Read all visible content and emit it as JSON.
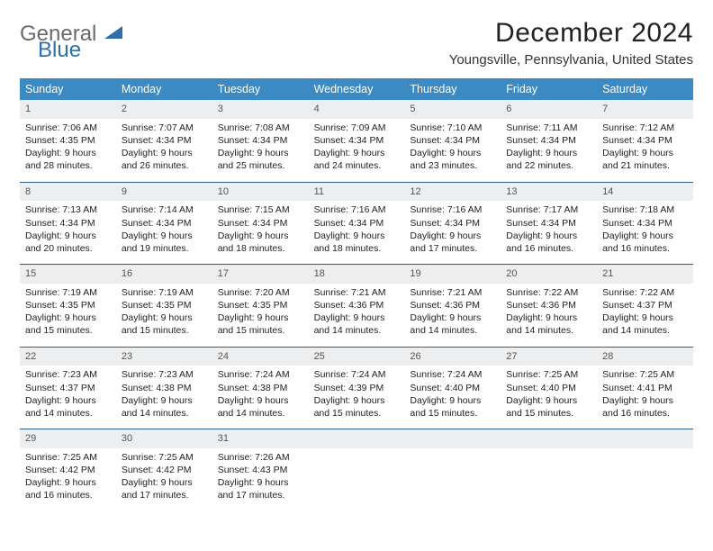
{
  "brand": {
    "line1": "General",
    "line2": "Blue",
    "line1_color": "#6a6a6a",
    "line2_color": "#2f6fa8",
    "icon_fill": "#2f6fa8"
  },
  "header": {
    "month_title": "December 2024",
    "location": "Youngsville, Pennsylvania, United States"
  },
  "colors": {
    "header_bar": "#3b8ac4",
    "week_divider": "#2c5f8a",
    "daynum_bg": "#eceeef"
  },
  "day_names": [
    "Sunday",
    "Monday",
    "Tuesday",
    "Wednesday",
    "Thursday",
    "Friday",
    "Saturday"
  ],
  "weeks": [
    [
      {
        "n": "1",
        "sr": "Sunrise: 7:06 AM",
        "ss": "Sunset: 4:35 PM",
        "d1": "Daylight: 9 hours",
        "d2": "and 28 minutes."
      },
      {
        "n": "2",
        "sr": "Sunrise: 7:07 AM",
        "ss": "Sunset: 4:34 PM",
        "d1": "Daylight: 9 hours",
        "d2": "and 26 minutes."
      },
      {
        "n": "3",
        "sr": "Sunrise: 7:08 AM",
        "ss": "Sunset: 4:34 PM",
        "d1": "Daylight: 9 hours",
        "d2": "and 25 minutes."
      },
      {
        "n": "4",
        "sr": "Sunrise: 7:09 AM",
        "ss": "Sunset: 4:34 PM",
        "d1": "Daylight: 9 hours",
        "d2": "and 24 minutes."
      },
      {
        "n": "5",
        "sr": "Sunrise: 7:10 AM",
        "ss": "Sunset: 4:34 PM",
        "d1": "Daylight: 9 hours",
        "d2": "and 23 minutes."
      },
      {
        "n": "6",
        "sr": "Sunrise: 7:11 AM",
        "ss": "Sunset: 4:34 PM",
        "d1": "Daylight: 9 hours",
        "d2": "and 22 minutes."
      },
      {
        "n": "7",
        "sr": "Sunrise: 7:12 AM",
        "ss": "Sunset: 4:34 PM",
        "d1": "Daylight: 9 hours",
        "d2": "and 21 minutes."
      }
    ],
    [
      {
        "n": "8",
        "sr": "Sunrise: 7:13 AM",
        "ss": "Sunset: 4:34 PM",
        "d1": "Daylight: 9 hours",
        "d2": "and 20 minutes."
      },
      {
        "n": "9",
        "sr": "Sunrise: 7:14 AM",
        "ss": "Sunset: 4:34 PM",
        "d1": "Daylight: 9 hours",
        "d2": "and 19 minutes."
      },
      {
        "n": "10",
        "sr": "Sunrise: 7:15 AM",
        "ss": "Sunset: 4:34 PM",
        "d1": "Daylight: 9 hours",
        "d2": "and 18 minutes."
      },
      {
        "n": "11",
        "sr": "Sunrise: 7:16 AM",
        "ss": "Sunset: 4:34 PM",
        "d1": "Daylight: 9 hours",
        "d2": "and 18 minutes."
      },
      {
        "n": "12",
        "sr": "Sunrise: 7:16 AM",
        "ss": "Sunset: 4:34 PM",
        "d1": "Daylight: 9 hours",
        "d2": "and 17 minutes."
      },
      {
        "n": "13",
        "sr": "Sunrise: 7:17 AM",
        "ss": "Sunset: 4:34 PM",
        "d1": "Daylight: 9 hours",
        "d2": "and 16 minutes."
      },
      {
        "n": "14",
        "sr": "Sunrise: 7:18 AM",
        "ss": "Sunset: 4:34 PM",
        "d1": "Daylight: 9 hours",
        "d2": "and 16 minutes."
      }
    ],
    [
      {
        "n": "15",
        "sr": "Sunrise: 7:19 AM",
        "ss": "Sunset: 4:35 PM",
        "d1": "Daylight: 9 hours",
        "d2": "and 15 minutes."
      },
      {
        "n": "16",
        "sr": "Sunrise: 7:19 AM",
        "ss": "Sunset: 4:35 PM",
        "d1": "Daylight: 9 hours",
        "d2": "and 15 minutes."
      },
      {
        "n": "17",
        "sr": "Sunrise: 7:20 AM",
        "ss": "Sunset: 4:35 PM",
        "d1": "Daylight: 9 hours",
        "d2": "and 15 minutes."
      },
      {
        "n": "18",
        "sr": "Sunrise: 7:21 AM",
        "ss": "Sunset: 4:36 PM",
        "d1": "Daylight: 9 hours",
        "d2": "and 14 minutes."
      },
      {
        "n": "19",
        "sr": "Sunrise: 7:21 AM",
        "ss": "Sunset: 4:36 PM",
        "d1": "Daylight: 9 hours",
        "d2": "and 14 minutes."
      },
      {
        "n": "20",
        "sr": "Sunrise: 7:22 AM",
        "ss": "Sunset: 4:36 PM",
        "d1": "Daylight: 9 hours",
        "d2": "and 14 minutes."
      },
      {
        "n": "21",
        "sr": "Sunrise: 7:22 AM",
        "ss": "Sunset: 4:37 PM",
        "d1": "Daylight: 9 hours",
        "d2": "and 14 minutes."
      }
    ],
    [
      {
        "n": "22",
        "sr": "Sunrise: 7:23 AM",
        "ss": "Sunset: 4:37 PM",
        "d1": "Daylight: 9 hours",
        "d2": "and 14 minutes."
      },
      {
        "n": "23",
        "sr": "Sunrise: 7:23 AM",
        "ss": "Sunset: 4:38 PM",
        "d1": "Daylight: 9 hours",
        "d2": "and 14 minutes."
      },
      {
        "n": "24",
        "sr": "Sunrise: 7:24 AM",
        "ss": "Sunset: 4:38 PM",
        "d1": "Daylight: 9 hours",
        "d2": "and 14 minutes."
      },
      {
        "n": "25",
        "sr": "Sunrise: 7:24 AM",
        "ss": "Sunset: 4:39 PM",
        "d1": "Daylight: 9 hours",
        "d2": "and 15 minutes."
      },
      {
        "n": "26",
        "sr": "Sunrise: 7:24 AM",
        "ss": "Sunset: 4:40 PM",
        "d1": "Daylight: 9 hours",
        "d2": "and 15 minutes."
      },
      {
        "n": "27",
        "sr": "Sunrise: 7:25 AM",
        "ss": "Sunset: 4:40 PM",
        "d1": "Daylight: 9 hours",
        "d2": "and 15 minutes."
      },
      {
        "n": "28",
        "sr": "Sunrise: 7:25 AM",
        "ss": "Sunset: 4:41 PM",
        "d1": "Daylight: 9 hours",
        "d2": "and 16 minutes."
      }
    ],
    [
      {
        "n": "29",
        "sr": "Sunrise: 7:25 AM",
        "ss": "Sunset: 4:42 PM",
        "d1": "Daylight: 9 hours",
        "d2": "and 16 minutes."
      },
      {
        "n": "30",
        "sr": "Sunrise: 7:25 AM",
        "ss": "Sunset: 4:42 PM",
        "d1": "Daylight: 9 hours",
        "d2": "and 17 minutes."
      },
      {
        "n": "31",
        "sr": "Sunrise: 7:26 AM",
        "ss": "Sunset: 4:43 PM",
        "d1": "Daylight: 9 hours",
        "d2": "and 17 minutes."
      },
      {
        "empty": true
      },
      {
        "empty": true
      },
      {
        "empty": true
      },
      {
        "empty": true
      }
    ]
  ]
}
